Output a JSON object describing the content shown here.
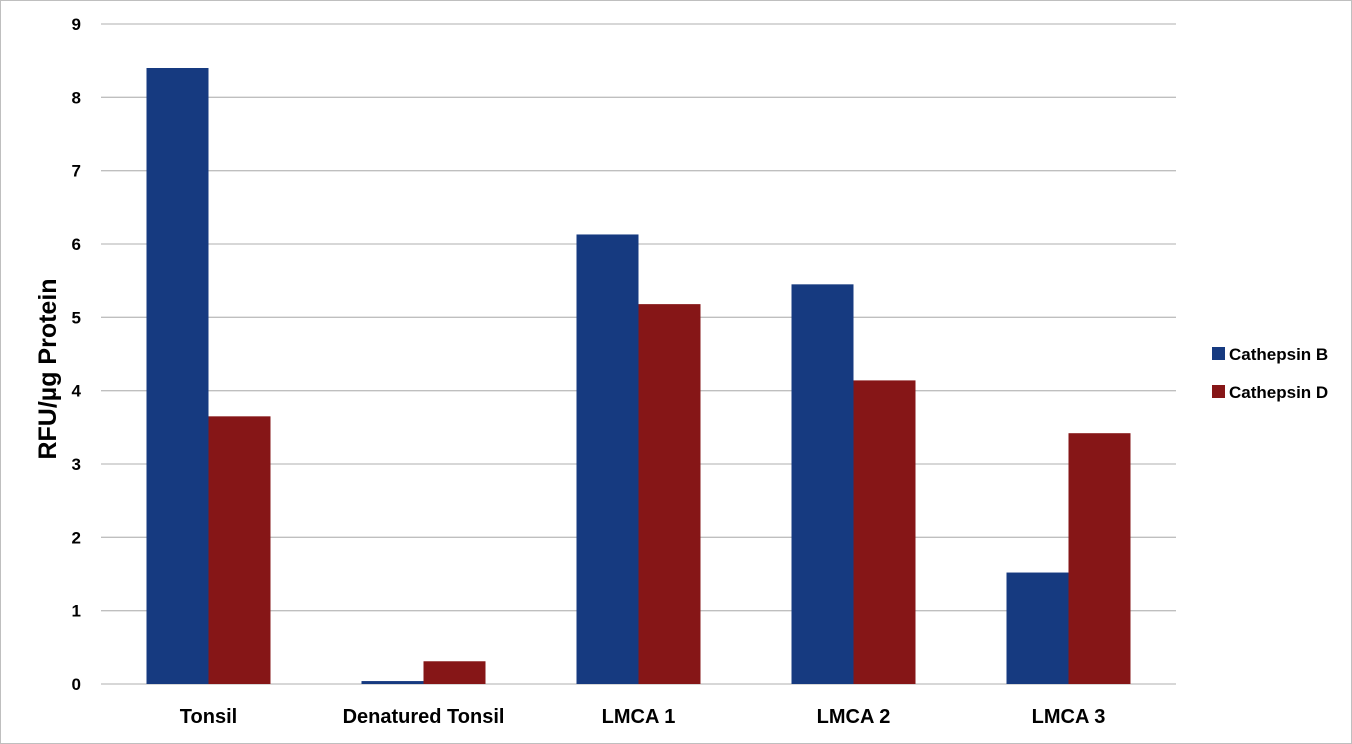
{
  "chart_data": {
    "type": "bar",
    "title": "",
    "xlabel": "",
    "ylabel": "RFU/µg Protein",
    "ylim": [
      0,
      9
    ],
    "yticks": [
      0,
      1,
      2,
      3,
      4,
      5,
      6,
      7,
      8,
      9
    ],
    "grid": true,
    "legend_position": "right",
    "categories": [
      "Tonsil",
      "Denatured Tonsil",
      "LMCA 1",
      "LMCA 2",
      "LMCA 3"
    ],
    "series": [
      {
        "name": "Cathepsin B",
        "color": "#163a80",
        "values": [
          8.4,
          0.04,
          6.13,
          5.45,
          1.52
        ]
      },
      {
        "name": "Cathepsin D",
        "color": "#861617",
        "values": [
          3.65,
          0.31,
          5.18,
          4.14,
          3.42
        ]
      }
    ]
  }
}
